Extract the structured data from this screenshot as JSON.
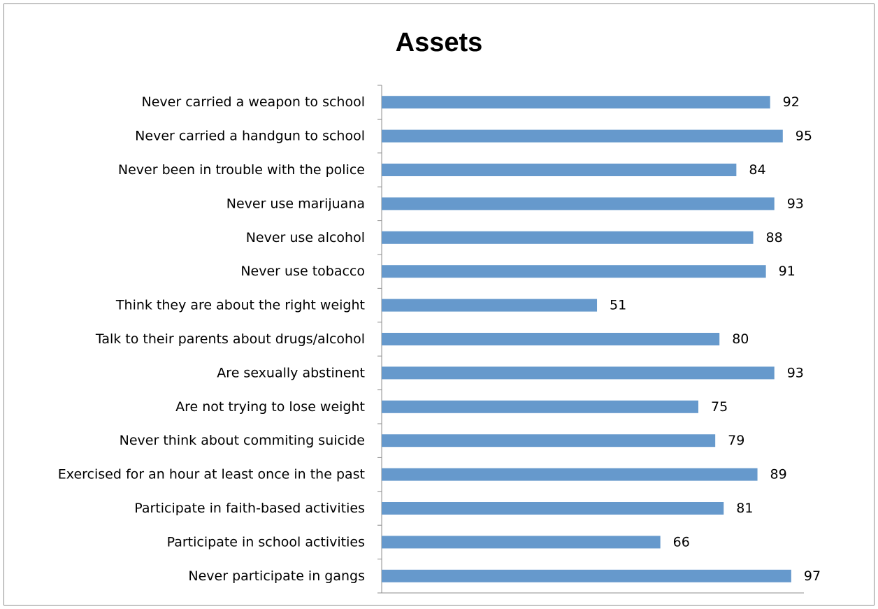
{
  "chart_data": {
    "type": "bar",
    "orientation": "horizontal",
    "title": "Assets",
    "xlabel": "",
    "ylabel": "",
    "xlim": [
      0,
      100
    ],
    "grid": false,
    "legend": "none",
    "bar_color": "#6699cc",
    "categories": [
      "Never carried a weapon to school",
      "Never carried a handgun to school",
      "Never been in trouble with the police",
      "Never use marijuana",
      "Never use alcohol",
      "Never use tobacco",
      "Think they are about the right weight",
      "Talk to their parents about drugs/alcohol",
      "Are sexually abstinent",
      "Are not trying to lose weight",
      "Never think about commiting suicide",
      "Exercised for an hour at least once in the past",
      "Participate in faith-based activities",
      "Participate in school activities",
      "Never participate in gangs"
    ],
    "values": [
      92,
      95,
      84,
      93,
      88,
      91,
      51,
      80,
      93,
      75,
      79,
      89,
      81,
      66,
      97
    ]
  }
}
